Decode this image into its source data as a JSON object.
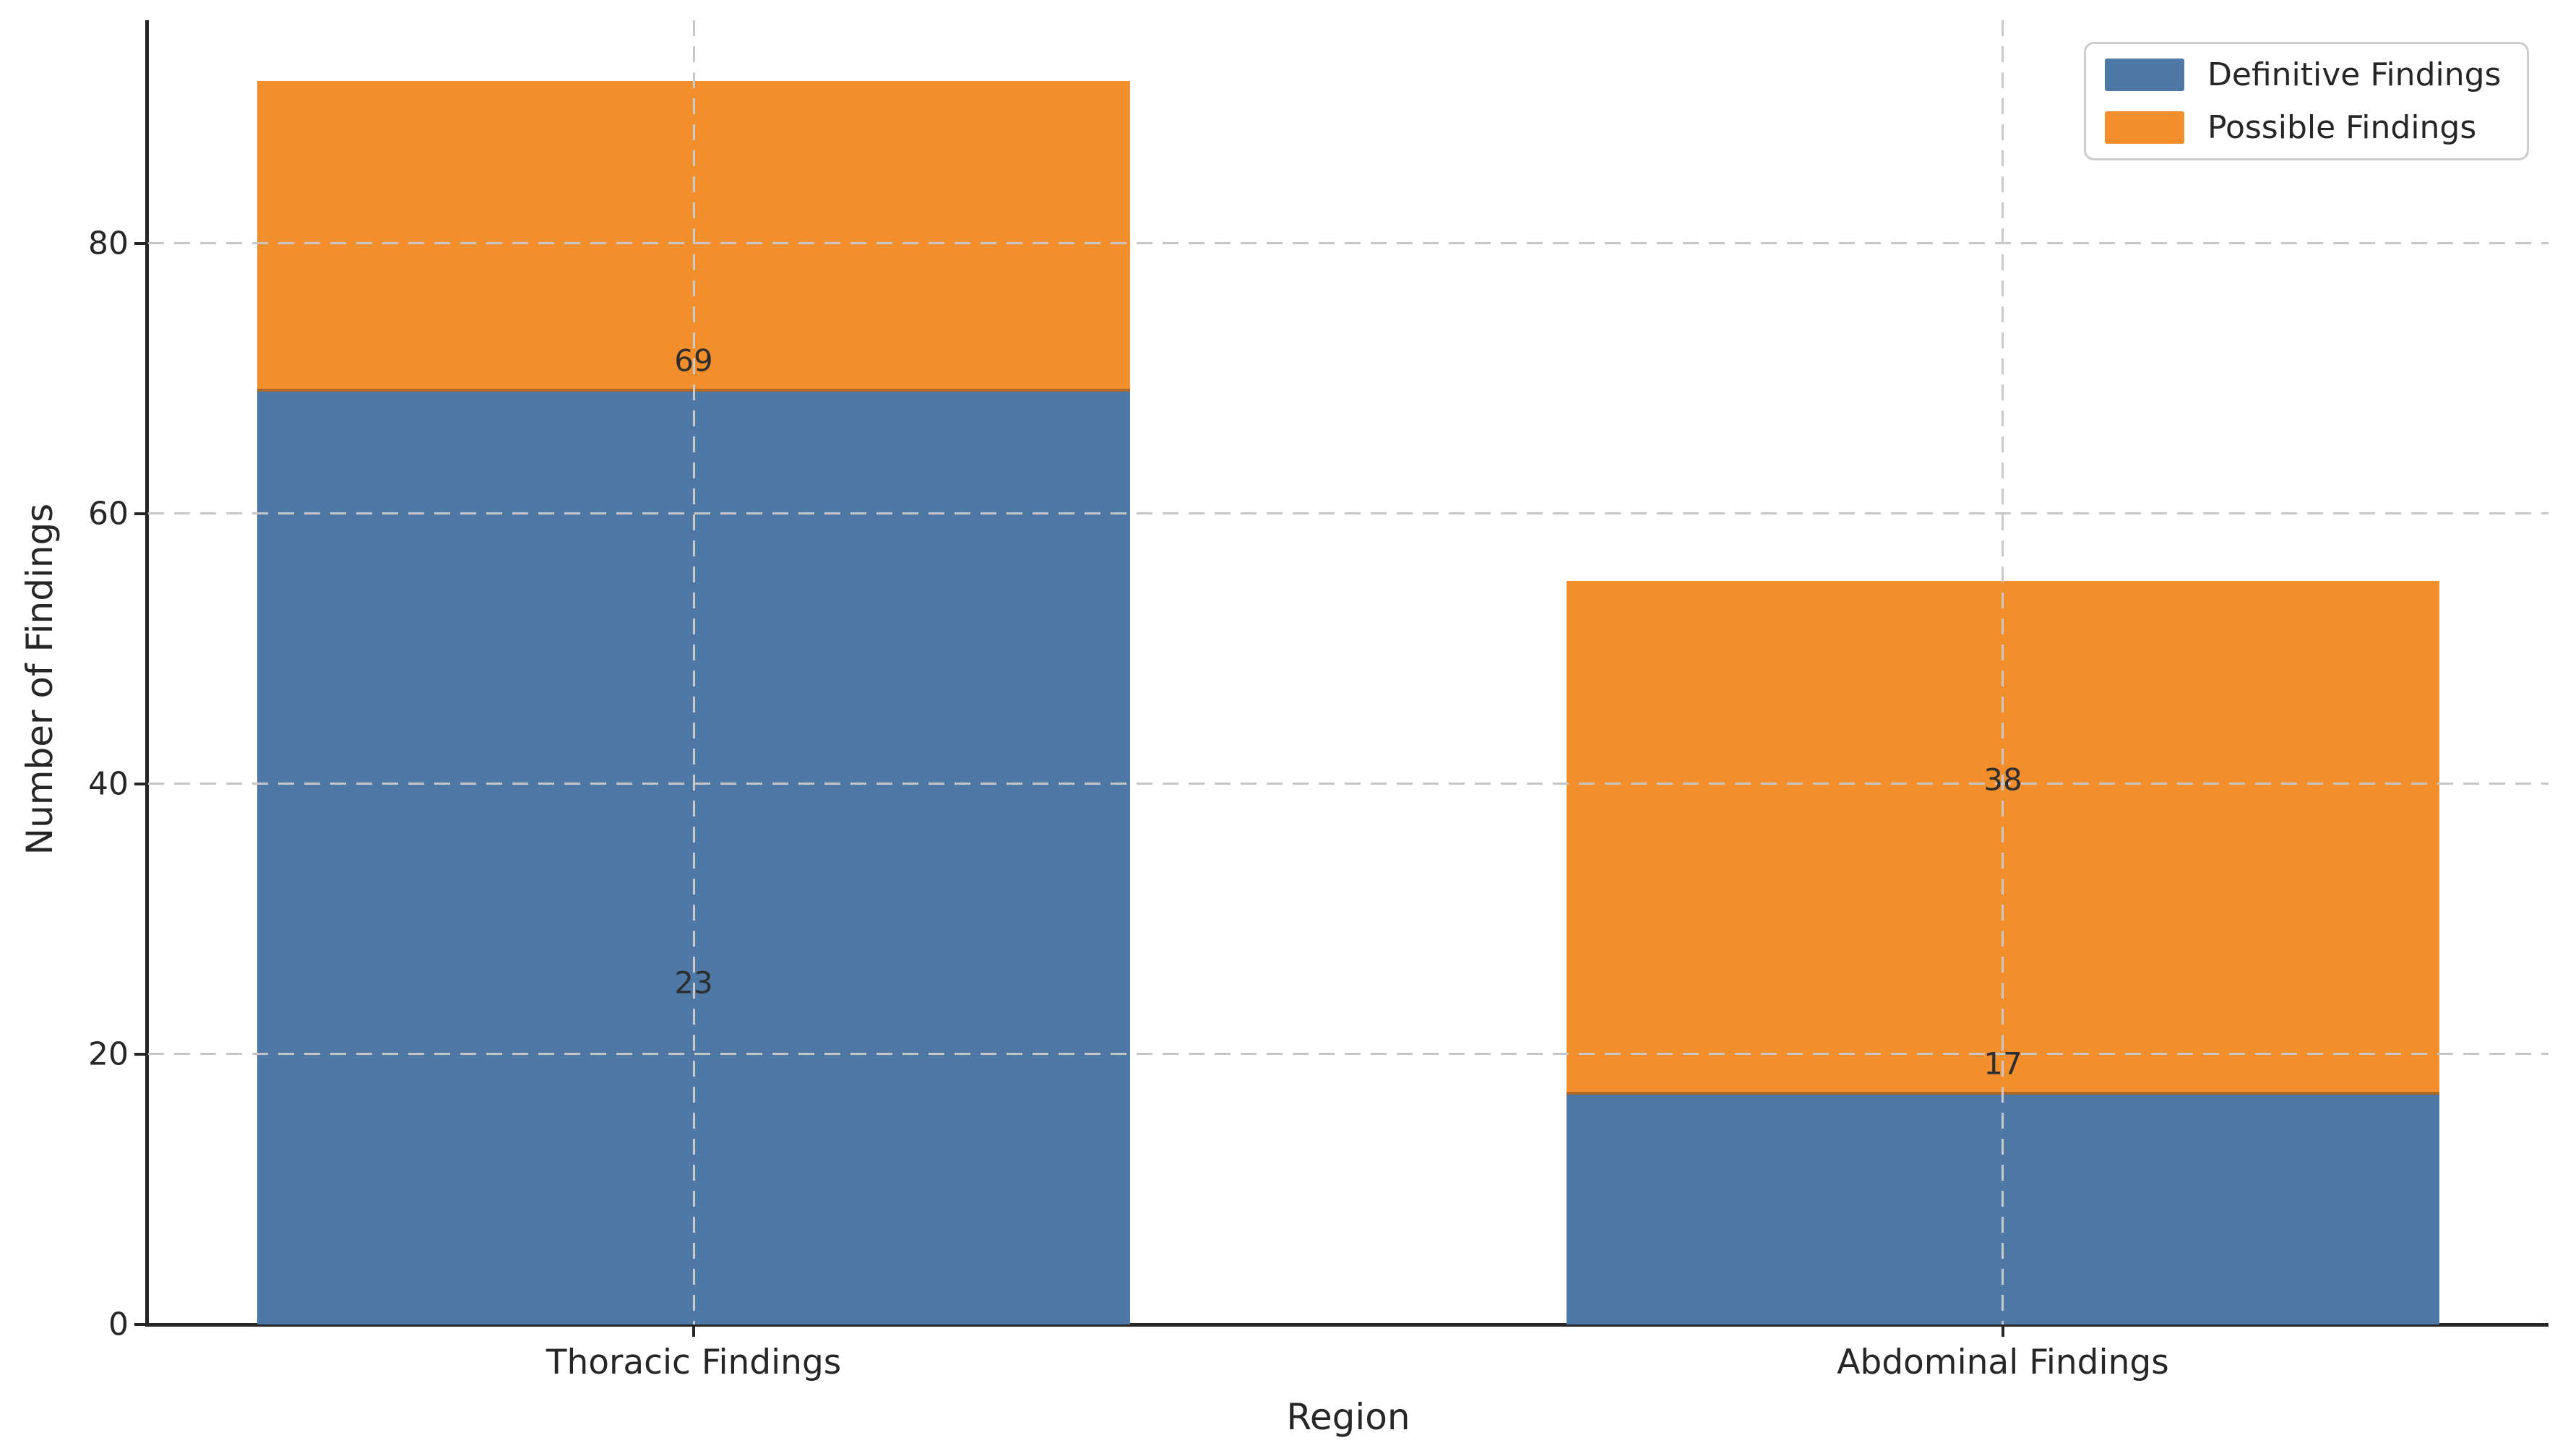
{
  "chart_data": {
    "type": "bar",
    "stacked": true,
    "title": "",
    "xlabel": "Region",
    "ylabel": "Number of Findings",
    "categories": [
      "Thoracic Findings",
      "Abdominal Findings"
    ],
    "series": [
      {
        "name": "Definitive Findings",
        "color": "#4E79A7",
        "values": [
          69,
          17
        ]
      },
      {
        "name": "Possible Findings",
        "color": "#F28E2B",
        "values": [
          23,
          38
        ]
      }
    ],
    "stack_totals": [
      92,
      55
    ],
    "segment_value_labels": [
      [
        "69",
        "23"
      ],
      [
        "17",
        "38"
      ]
    ],
    "yticks": [
      0,
      20,
      40,
      60,
      80
    ],
    "ylim": [
      0,
      96.5
    ],
    "grid": "dashed",
    "grid_color": "#c9c9c9",
    "axis_color": "#262626",
    "text_color": "#262626",
    "legend_position": "upper right",
    "legend_entries": [
      "Definitive Findings",
      "Possible Findings"
    ]
  }
}
